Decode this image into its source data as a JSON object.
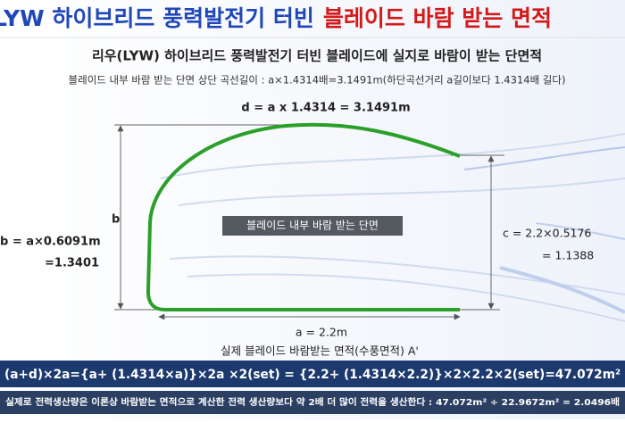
{
  "header": {
    "title_blue": "LYW 하이브리드 풍력발전기 터빈",
    "title_red": "블레이드 바람 받는 면적"
  },
  "subtitle": "리우(LYW) 하이브리드 풍력발전기 터빈 블레이드에 실지로 바람이 받는 단면적",
  "description": "블레이드 내부 바람 받는 단면 상단 곡선길이 : a×1.4314배=3.1491m(하단곡선거리 a길이보다 1.4314배 길다)",
  "diagram": {
    "d_label": "d = a x 1.4314 = 3.1491m",
    "b_symbol": "b",
    "b_formula": "b = a×0.6091m",
    "b_value": "=1.3401",
    "c_formula": "c = 2.2×0.5176",
    "c_value": "= 1.1388",
    "center_label": "블레이드 내부 바람 받는 단면",
    "a_label": "a = 2.2m",
    "area_caption": "실제 블레이드 바람받는 면적(수풍면적) A'"
  },
  "formula": "(a+d)×2a={a+ (1.4314×a)}×2a ×2(set) = {2.2+ (1.4314×2.2)}×2×2.2×2(set)=47.072m²",
  "footer": "실제로 전력생산량은 이론상 바람받는 면적으로 계산한 전력 생산량보다 약 2배 더 많이 전력을 생산한다 : 47.072m² ÷ 22.9672m² = 2.0496배"
}
